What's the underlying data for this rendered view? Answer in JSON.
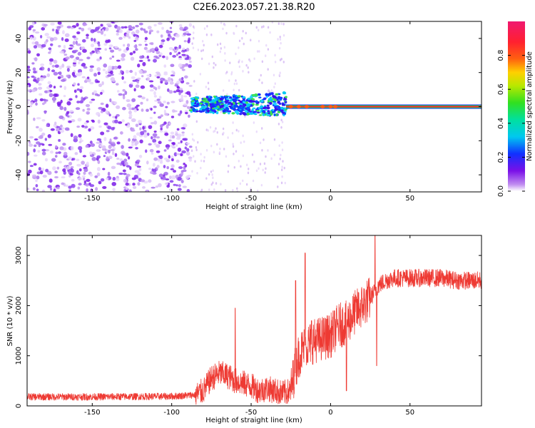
{
  "title": "C2E6.2023.057.21.38.R20",
  "chart_data": [
    {
      "type": "heatmap",
      "xlabel": "Height of straight line (km)",
      "ylabel": "Frequency (Hz)",
      "xlim": [
        -191,
        95
      ],
      "ylim": [
        -50,
        50
      ],
      "xticks": [
        -150,
        -100,
        -50,
        0,
        50
      ],
      "yticks": [
        -40,
        -20,
        0,
        20,
        40
      ],
      "colorbar": {
        "label": "Normalized spectral amplitude",
        "range": [
          0,
          1
        ],
        "ticks": [
          "0.0",
          "0.2",
          "0.4",
          "0.6",
          "0.8"
        ]
      },
      "regions": [
        {
          "x": [
            -191,
            -88
          ],
          "freq": [
            -50,
            50
          ],
          "amplitude": "low, scattered"
        },
        {
          "x": [
            -88,
            -28
          ],
          "freq": [
            -5,
            10
          ],
          "amplitude": "medium"
        },
        {
          "x": [
            -28,
            95
          ],
          "freq": [
            -1,
            1
          ],
          "amplitude": "high (carrier at 0 Hz)"
        }
      ],
      "carrier_frequency": 0
    },
    {
      "type": "line",
      "xlabel": "Height of straight line (km)",
      "ylabel": "SNR (10 * v/v)",
      "xlim": [
        -191,
        95
      ],
      "ylim": [
        0,
        3400
      ],
      "xticks": [
        -150,
        -100,
        -50,
        0,
        50
      ],
      "yticks": [
        0,
        1000,
        2000,
        3000
      ],
      "color": "#ee3a33",
      "series": [
        {
          "x": [
            -191,
            -150,
            -100,
            -85,
            -80,
            -75,
            -70,
            -65,
            -60,
            -55,
            -50,
            -45,
            -40,
            -35,
            -30,
            -25,
            -22,
            -20,
            -18,
            -15,
            -10,
            -5,
            0,
            5,
            10,
            15,
            20,
            25,
            28,
            30,
            35,
            40,
            50,
            60,
            70,
            80,
            95
          ],
          "y": [
            180,
            180,
            190,
            220,
            300,
            550,
            650,
            600,
            500,
            450,
            400,
            300,
            350,
            300,
            250,
            300,
            800,
            1000,
            1100,
            1200,
            1300,
            1350,
            1400,
            1600,
            1650,
            1850,
            2000,
            2150,
            2300,
            2400,
            2500,
            2550,
            2550,
            2550,
            2550,
            2500,
            2500
          ],
          "spikes": [
            {
              "x": -60,
              "y": 1950
            },
            {
              "x": -22,
              "y": 2500
            },
            {
              "x": -16,
              "y": 3050
            },
            {
              "x": -12,
              "y": 1700
            },
            {
              "x": 28,
              "y": 3450
            },
            {
              "x": 29,
              "y": 800
            },
            {
              "x": 10,
              "y": 300
            }
          ]
        }
      ]
    }
  ]
}
